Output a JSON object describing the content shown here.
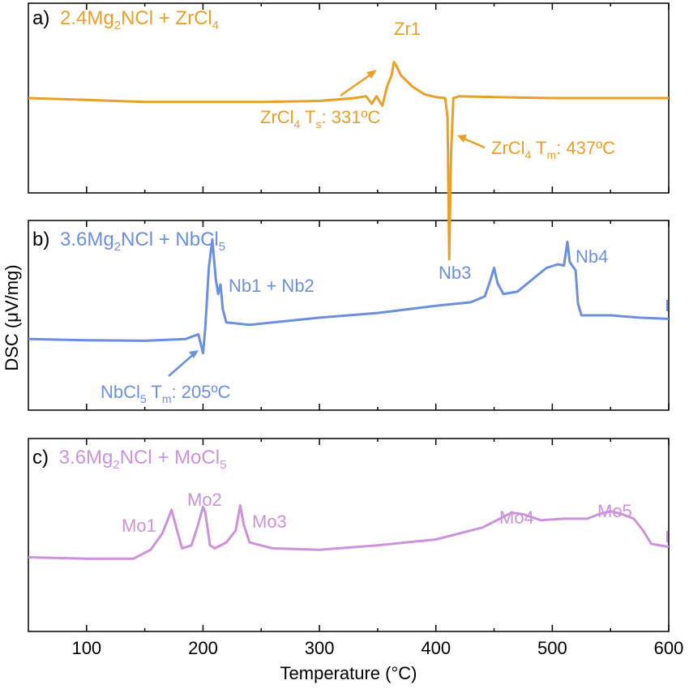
{
  "chart_data": {
    "type": "line",
    "xlabel": "Temperature (°C)",
    "ylabel": "DSC (μV/mg)",
    "xlim": [
      50,
      600
    ],
    "x_ticks": [
      100,
      200,
      300,
      400,
      500,
      600
    ],
    "y_ticks_shown": false,
    "panels": [
      {
        "id": "a",
        "label_prefix": "a)",
        "title_parts": [
          "2.4Mg",
          "2",
          "NCl + ZrCl",
          "4"
        ],
        "color": "#E8A028",
        "ylim": [
          -5,
          5
        ],
        "series": [
          {
            "name": "2.4Mg2NCl + ZrCl4",
            "points": [
              [
                50,
                0
              ],
              [
                100,
                -0.1
              ],
              [
                150,
                -0.2
              ],
              [
                200,
                -0.2
              ],
              [
                250,
                -0.2
              ],
              [
                300,
                -0.15
              ],
              [
                330,
                0
              ],
              [
                340,
                0.1
              ],
              [
                345,
                -0.3
              ],
              [
                349,
                0.1
              ],
              [
                354,
                -0.4
              ],
              [
                358,
                0.6
              ],
              [
                362,
                1.2
              ],
              [
                364,
                1.9
              ],
              [
                366,
                1.7
              ],
              [
                370,
                1.2
              ],
              [
                380,
                0.6
              ],
              [
                390,
                0.2
              ],
              [
                400,
                0.05
              ],
              [
                408,
                0
              ],
              [
                410,
                -1
              ],
              [
                411.5,
                -8.5
              ],
              [
                413,
                -3
              ],
              [
                415,
                0
              ],
              [
                420,
                0.1
              ],
              [
                450,
                0.05
              ],
              [
                500,
                0
              ],
              [
                550,
                0
              ],
              [
                600,
                0
              ]
            ]
          }
        ],
        "annotations": [
          {
            "text": "Zr1",
            "x": 366,
            "y": 1.9
          },
          {
            "text_parts": [
              "ZrCl",
              "4",
              " T",
              "s",
              ": 331ºC"
            ],
            "x": 352,
            "y": -0.4
          },
          {
            "text_parts": [
              "ZrCl",
              "4",
              " T",
              "m",
              ": 437ºC"
            ],
            "x": 412,
            "y": -5.5
          }
        ]
      },
      {
        "id": "b",
        "label_prefix": "b)",
        "title_parts": [
          "3.6Mg",
          "2",
          "NCl + NbCl",
          "5"
        ],
        "color": "#6C8FE0",
        "ylim": [
          -6,
          10
        ],
        "series": [
          {
            "name": "3.6Mg2NCl + NbCl5",
            "points": [
              [
                50,
                0
              ],
              [
                100,
                -0.1
              ],
              [
                150,
                -0.15
              ],
              [
                185,
                0
              ],
              [
                196,
                0.4
              ],
              [
                200,
                -1.2
              ],
              [
                202,
                1
              ],
              [
                205,
                6
              ],
              [
                208,
                8.4
              ],
              [
                211,
                5
              ],
              [
                213,
                3.8
              ],
              [
                215,
                4.6
              ],
              [
                217,
                2.5
              ],
              [
                220,
                1.4
              ],
              [
                240,
                1.2
              ],
              [
                260,
                1.4
              ],
              [
                300,
                1.8
              ],
              [
                350,
                2.2
              ],
              [
                400,
                2.8
              ],
              [
                430,
                3.1
              ],
              [
                442,
                3.6
              ],
              [
                447,
                5
              ],
              [
                450,
                6
              ],
              [
                453,
                4.7
              ],
              [
                458,
                3.8
              ],
              [
                470,
                4
              ],
              [
                480,
                4.8
              ],
              [
                495,
                6
              ],
              [
                505,
                6.3
              ],
              [
                510,
                6.2
              ],
              [
                513,
                8.2
              ],
              [
                515,
                6.5
              ],
              [
                517,
                6.2
              ],
              [
                520,
                5.8
              ],
              [
                522,
                3
              ],
              [
                525,
                2
              ],
              [
                550,
                2
              ],
              [
                575,
                1.8
              ],
              [
                600,
                1.7
              ]
            ]
          }
        ],
        "annotations": [
          {
            "text": "Nb1 + Nb2",
            "x": 213,
            "y": 5
          },
          {
            "text": "Nb3",
            "x": 450,
            "y": 6
          },
          {
            "text": "Nb4",
            "x": 513,
            "y": 8.2
          },
          {
            "text_parts": [
              "NbCl",
              "5",
              " T",
              "m",
              ": 205ºC"
            ],
            "x": 200,
            "y": -1.2
          }
        ]
      },
      {
        "id": "c",
        "label_prefix": "c)",
        "title_parts": [
          "3.6Mg",
          "2",
          "NCl + MoCl",
          "5"
        ],
        "color": "#CC93DA",
        "ylim": [
          -5,
          8
        ],
        "series": [
          {
            "name": "3.6Mg2NCl + MoCl5",
            "points": [
              [
                50,
                0
              ],
              [
                100,
                -0.1
              ],
              [
                140,
                -0.1
              ],
              [
                155,
                0.5
              ],
              [
                165,
                1.6
              ],
              [
                170,
                2.6
              ],
              [
                173,
                3.2
              ],
              [
                177,
                2
              ],
              [
                182,
                0.6
              ],
              [
                190,
                0.8
              ],
              [
                195,
                2
              ],
              [
                200,
                3.4
              ],
              [
                202,
                3
              ],
              [
                206,
                0.8
              ],
              [
                210,
                0.6
              ],
              [
                220,
                1
              ],
              [
                228,
                1.8
              ],
              [
                232,
                3.5
              ],
              [
                235,
                2.2
              ],
              [
                240,
                1
              ],
              [
                260,
                0.6
              ],
              [
                300,
                0.5
              ],
              [
                350,
                0.8
              ],
              [
                400,
                1.2
              ],
              [
                440,
                2
              ],
              [
                455,
                2.6
              ],
              [
                465,
                3
              ],
              [
                475,
                2.9
              ],
              [
                490,
                2.5
              ],
              [
                510,
                2.6
              ],
              [
                530,
                2.6
              ],
              [
                540,
                2.9
              ],
              [
                550,
                3.1
              ],
              [
                560,
                2.9
              ],
              [
                570,
                2.6
              ],
              [
                578,
                1.8
              ],
              [
                585,
                0.9
              ],
              [
                600,
                0.7
              ]
            ]
          }
        ],
        "annotations": [
          {
            "text": "Mo1",
            "x": 173,
            "y": 3.2
          },
          {
            "text": "Mo2",
            "x": 200,
            "y": 3.4
          },
          {
            "text": "Mo3",
            "x": 232,
            "y": 3.5
          },
          {
            "text": "Mo4",
            "x": 465,
            "y": 3
          },
          {
            "text": "Mo5",
            "x": 550,
            "y": 3.1
          }
        ]
      }
    ]
  }
}
